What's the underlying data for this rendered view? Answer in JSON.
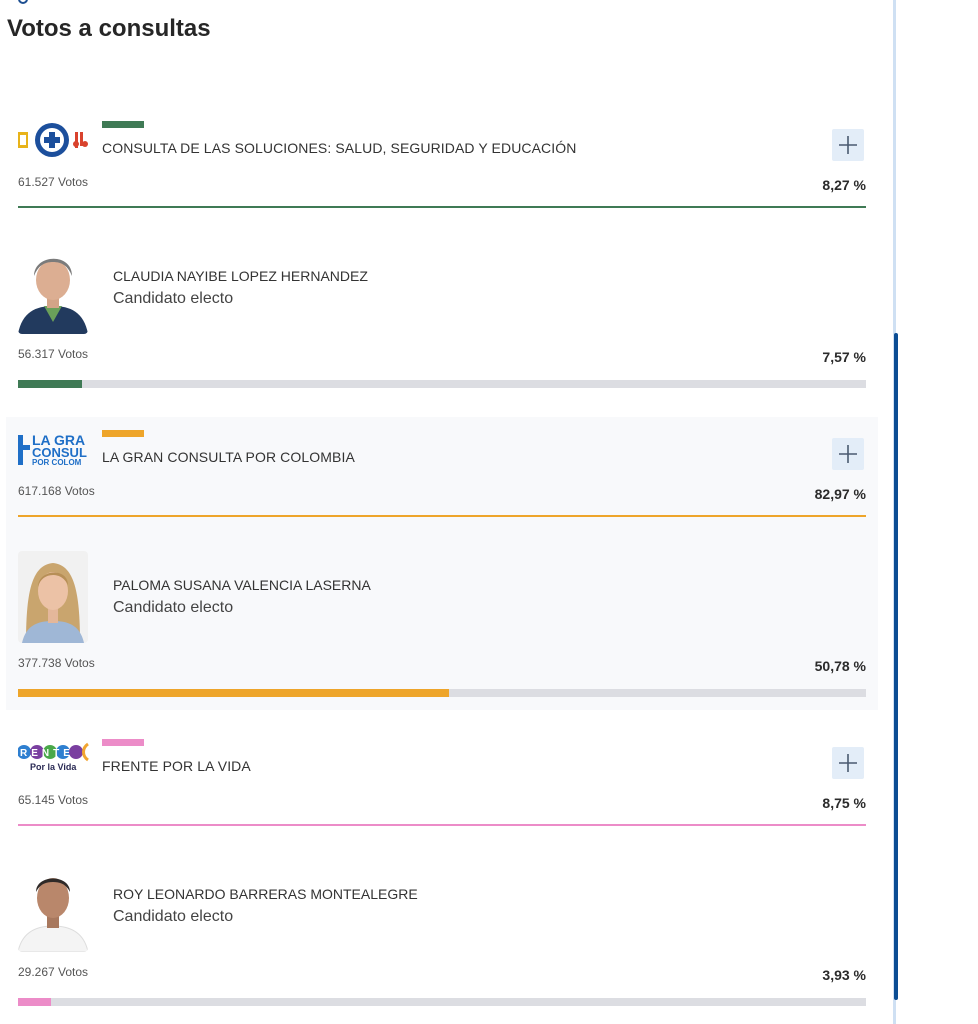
{
  "page_title": "Votos a consultas",
  "votes_suffix": "Votos",
  "blocks": [
    {
      "party": {
        "name": "CONSULTA DE LAS SOLUCIONES: SALUD, SEGURIDAD Y EDUCACIÓN",
        "votes": "61.527 Votos",
        "percent": "8,27 %",
        "color": "#3f7a55",
        "logo": "soluciones-logo"
      },
      "candidate": {
        "name": "CLAUDIA NAYIBE LOPEZ HERNANDEZ",
        "status": "Candidato electo",
        "votes": "56.317 Votos",
        "percent": "7,57 %",
        "bar_fraction": 0.0757,
        "color": "#3f7a55"
      }
    },
    {
      "party": {
        "name": "LA GRAN CONSULTA POR COLOMBIA",
        "votes": "617.168 Votos",
        "percent": "82,97 %",
        "color": "#eea52a",
        "logo": "gran-consulta-logo",
        "logo_text": [
          "LA GRA",
          "CONSUL",
          "POR COLOM"
        ]
      },
      "candidate": {
        "name": "PALOMA SUSANA VALENCIA LASERNA",
        "status": "Candidato electo",
        "votes": "377.738 Votos",
        "percent": "50,78 %",
        "bar_fraction": 0.5078,
        "color": "#eea52a"
      }
    },
    {
      "party": {
        "name": "FRENTE POR LA VIDA",
        "votes": "65.145 Votos",
        "percent": "8,75 %",
        "color": "#ec8cc8",
        "logo": "frente-logo",
        "logo_text": [
          "RENTE",
          "Por la Vida"
        ]
      },
      "candidate": {
        "name": "ROY LEONARDO BARRERAS MONTEALEGRE",
        "status": "Candidato electo",
        "votes": "29.267 Votos",
        "percent": "3,93 %",
        "bar_fraction": 0.0393,
        "color": "#ec8cc8"
      }
    }
  ],
  "icons": {
    "expand": "plus-icon"
  }
}
